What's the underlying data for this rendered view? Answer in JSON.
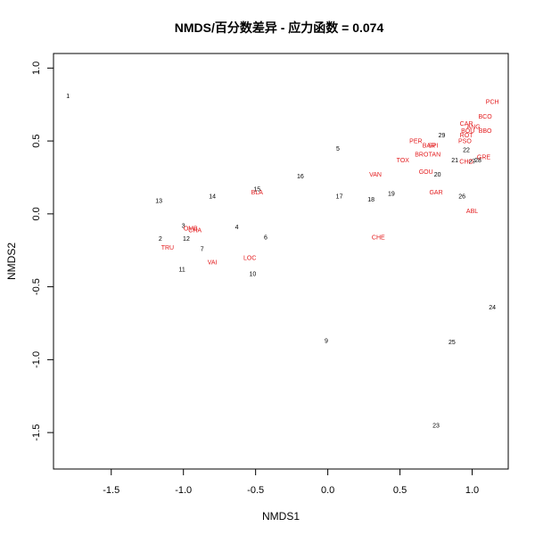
{
  "chart_data": {
    "type": "scatter",
    "title": "NMDS/百分数差异 - 应力函数 = 0.074",
    "xlabel": "NMDS1",
    "ylabel": "NMDS2",
    "xlim": [
      -1.9,
      1.25
    ],
    "ylim": [
      -1.75,
      1.1
    ],
    "xticks": [
      -1.5,
      -1.0,
      -0.5,
      0.0,
      0.5,
      1.0
    ],
    "xtick_labels": [
      "-1.5",
      "-1.0",
      "-0.5",
      "0.0",
      "0.5",
      "1.0"
    ],
    "yticks": [
      -1.5,
      -1.0,
      -0.5,
      0.0,
      0.5,
      1.0
    ],
    "ytick_labels": [
      "-1.5",
      "-1.0",
      "-0.5",
      "0.0",
      "0.5",
      "1.0"
    ],
    "grid": false,
    "colors": {
      "sites": "#000000",
      "species": "#e31a1c"
    },
    "series": [
      {
        "role": "sites",
        "points": [
          {
            "label": "1",
            "x": -1.8,
            "y": 0.81
          },
          {
            "label": "2",
            "x": -1.16,
            "y": -0.17
          },
          {
            "label": "3",
            "x": -1.0,
            "y": -0.08
          },
          {
            "label": "4",
            "x": -0.63,
            "y": -0.09
          },
          {
            "label": "5",
            "x": 0.07,
            "y": 0.45
          },
          {
            "label": "6",
            "x": -0.43,
            "y": -0.16
          },
          {
            "label": "7",
            "x": -0.87,
            "y": -0.24
          },
          {
            "label": "9",
            "x": -0.01,
            "y": -0.87
          },
          {
            "label": "10",
            "x": -0.52,
            "y": -0.41
          },
          {
            "label": "11",
            "x": -1.01,
            "y": -0.38
          },
          {
            "label": "12",
            "x": -0.98,
            "y": -0.17
          },
          {
            "label": "13",
            "x": -1.17,
            "y": 0.09
          },
          {
            "label": "14",
            "x": -0.8,
            "y": 0.12
          },
          {
            "label": "15",
            "x": -0.49,
            "y": 0.17
          },
          {
            "label": "16",
            "x": -0.19,
            "y": 0.26
          },
          {
            "label": "17",
            "x": 0.08,
            "y": 0.12
          },
          {
            "label": "18",
            "x": 0.3,
            "y": 0.1
          },
          {
            "label": "19",
            "x": 0.44,
            "y": 0.14
          },
          {
            "label": "20",
            "x": 0.76,
            "y": 0.27
          },
          {
            "label": "21",
            "x": 0.88,
            "y": 0.37
          },
          {
            "label": "22",
            "x": 0.96,
            "y": 0.44
          },
          {
            "label": "23",
            "x": 0.75,
            "y": -1.45
          },
          {
            "label": "24",
            "x": 1.14,
            "y": -0.64
          },
          {
            "label": "25",
            "x": 0.86,
            "y": -0.88
          },
          {
            "label": "26",
            "x": 0.93,
            "y": 0.12
          },
          {
            "label": "27",
            "x": 1.0,
            "y": 0.36
          },
          {
            "label": "28",
            "x": 1.04,
            "y": 0.37
          },
          {
            "label": "29",
            "x": 0.79,
            "y": 0.54
          }
        ]
      },
      {
        "role": "species",
        "points": [
          {
            "label": "PCH",
            "x": 1.14,
            "y": 0.77
          },
          {
            "label": "BCO",
            "x": 1.09,
            "y": 0.67
          },
          {
            "label": "CAR",
            "x": 0.96,
            "y": 0.62
          },
          {
            "label": "ANG",
            "x": 1.01,
            "y": 0.6
          },
          {
            "label": "BOU",
            "x": 0.97,
            "y": 0.57
          },
          {
            "label": "BBO",
            "x": 1.09,
            "y": 0.57
          },
          {
            "label": "ROT",
            "x": 0.96,
            "y": 0.54
          },
          {
            "label": "PER",
            "x": 0.61,
            "y": 0.5
          },
          {
            "label": "PSO",
            "x": 0.95,
            "y": 0.5
          },
          {
            "label": "BAR",
            "x": 0.7,
            "y": 0.47
          },
          {
            "label": "SPI",
            "x": 0.73,
            "y": 0.47
          },
          {
            "label": "BRO",
            "x": 0.65,
            "y": 0.41
          },
          {
            "label": "TAN",
            "x": 0.74,
            "y": 0.41
          },
          {
            "label": "TOX",
            "x": 0.52,
            "y": 0.37
          },
          {
            "label": "CHO",
            "x": 0.96,
            "y": 0.36
          },
          {
            "label": "GRE",
            "x": 1.08,
            "y": 0.39
          },
          {
            "label": "GOU",
            "x": 0.68,
            "y": 0.29
          },
          {
            "label": "VAN",
            "x": 0.33,
            "y": 0.27
          },
          {
            "label": "GAR",
            "x": 0.75,
            "y": 0.15
          },
          {
            "label": "ABL",
            "x": 1.0,
            "y": 0.02
          },
          {
            "label": "BLA",
            "x": -0.49,
            "y": 0.15
          },
          {
            "label": "OMB",
            "x": -0.95,
            "y": -0.1
          },
          {
            "label": "LOC",
            "x": -0.54,
            "y": -0.3
          },
          {
            "label": "CHE",
            "x": 0.35,
            "y": -0.16
          },
          {
            "label": "TRU",
            "x": -1.11,
            "y": -0.23
          },
          {
            "label": "VAI",
            "x": -0.8,
            "y": -0.33
          },
          {
            "label": "CHA",
            "x": -0.92,
            "y": -0.11
          }
        ]
      }
    ]
  }
}
